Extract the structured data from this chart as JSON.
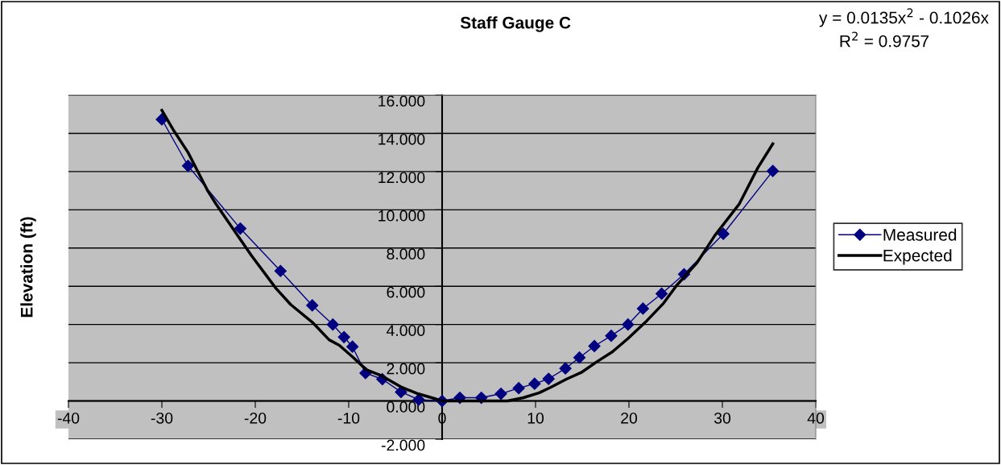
{
  "chart_data": {
    "type": "line",
    "title": "Staff Gauge C",
    "ylabel": "Elevation (ft)",
    "annotations": [
      "y = 0.0135x$^{2}$ - 0.1026x",
      "R$^{2}$ = 0.9757"
    ],
    "xlim": [
      -40,
      40
    ],
    "xticks": [
      -40,
      -30,
      -20,
      -10,
      0,
      10,
      20,
      30,
      40
    ],
    "ylim": [
      -2,
      16
    ],
    "yticks": [
      {
        "value": -2,
        "label": "-2.000"
      },
      {
        "value": 0,
        "label": "0.000"
      },
      {
        "value": 2,
        "label": "2.000"
      },
      {
        "value": 4,
        "label": "4.000"
      },
      {
        "value": 6,
        "label": "6.000"
      },
      {
        "value": 8,
        "label": "8.000"
      },
      {
        "value": 10,
        "label": "10.000"
      },
      {
        "value": 12,
        "label": "12.000"
      },
      {
        "value": 14,
        "label": "14.000"
      },
      {
        "value": 16,
        "label": "16.000"
      }
    ],
    "grid": "y",
    "legend": "right",
    "series": [
      {
        "name": "Measured",
        "color": "#000080",
        "marker": "diamond",
        "x": [
          -30,
          -27.2,
          -21.6,
          -17.3,
          -13.9,
          -11.7,
          -10.5,
          -9.6,
          -8.2,
          -6.4,
          -4.4,
          -2.5,
          0,
          1.9,
          4.2,
          6.3,
          8.2,
          9.9,
          11.4,
          13.2,
          14.7,
          16.3,
          18.1,
          19.9,
          21.5,
          23.5,
          25.9,
          30.1,
          35.4
        ],
        "values": [
          14.73,
          12.3,
          9.02,
          6.8,
          5.0,
          4.0,
          3.34,
          2.84,
          1.46,
          1.14,
          0.47,
          0.07,
          0.0,
          0.17,
          0.17,
          0.38,
          0.67,
          0.9,
          1.16,
          1.7,
          2.27,
          2.87,
          3.41,
          4.0,
          4.83,
          5.61,
          6.63,
          8.74,
          12.03
        ]
      },
      {
        "name": "Expected",
        "color": "#000000",
        "marker": "none",
        "x": [
          -30,
          -28.8,
          -27.2,
          -25.1,
          -24.2,
          -22.2,
          -20.4,
          -17.8,
          -16.2,
          -13.9,
          -12.1,
          -11.0,
          -9.5,
          -8.1,
          -6.6,
          -4.3,
          -2.6,
          -0.9,
          0,
          7.0,
          8.7,
          10.4,
          11.6,
          13.3,
          14.9,
          16.5,
          18.2,
          19.9,
          21.9,
          23.7,
          25.1,
          27.3,
          29.2,
          31.8,
          33.8,
          35.4
        ],
        "values": [
          15.2,
          14.2,
          13.0,
          11.0,
          10.3,
          8.88,
          7.6,
          5.9,
          5.04,
          4.12,
          3.2,
          2.91,
          2.27,
          1.63,
          1.35,
          0.71,
          0.38,
          0.14,
          0,
          0,
          0.17,
          0.43,
          0.71,
          1.14,
          1.49,
          2.03,
          2.56,
          3.27,
          4.19,
          5.11,
          6.04,
          7.24,
          8.66,
          10.3,
          12.2,
          13.45
        ]
      }
    ]
  }
}
